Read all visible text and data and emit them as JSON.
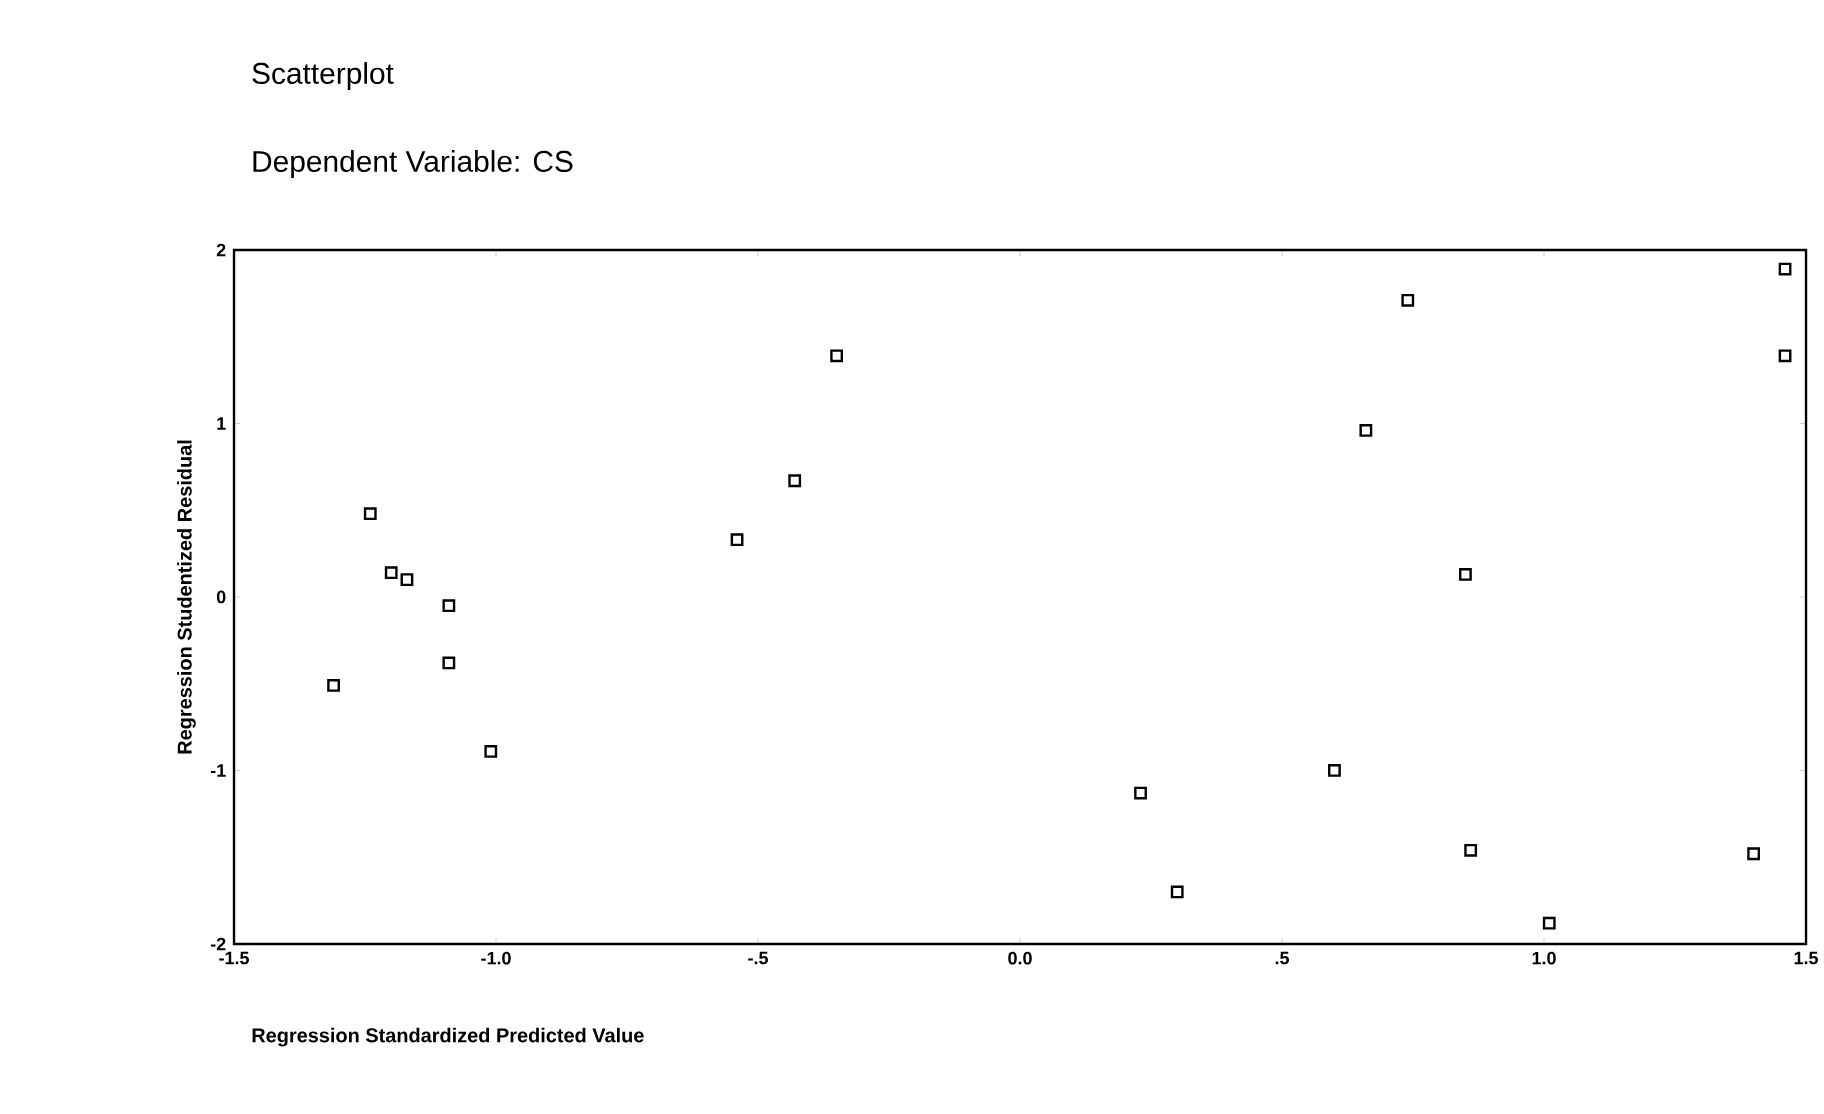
{
  "chart_data": {
    "type": "scatter",
    "title": "Scatterplot",
    "subtitle": "Dependent Variable: CS",
    "xlabel": "Regression Standardized Predicted Value",
    "ylabel": "Regression Studentized Residual",
    "x": [
      -1.31,
      -1.24,
      -1.2,
      -1.17,
      -1.09,
      -1.09,
      -1.01,
      -0.54,
      -0.43,
      -0.35,
      0.23,
      0.3,
      0.6,
      0.66,
      0.74,
      0.85,
      0.86,
      1.01,
      1.4,
      1.46,
      1.46
    ],
    "values": [
      -0.51,
      0.48,
      0.14,
      0.1,
      -0.05,
      -0.38,
      -0.89,
      0.33,
      0.67,
      1.39,
      -1.13,
      -1.7,
      -1.0,
      0.96,
      1.71,
      0.13,
      -1.46,
      -1.88,
      -1.48,
      1.39,
      1.89
    ],
    "color": "#000000",
    "marker": "square",
    "xlim": [
      -1.5,
      1.5
    ],
    "ylim": [
      -2,
      2
    ],
    "xticks": [
      {
        "value": -1.5,
        "label": "-1.5"
      },
      {
        "value": -1.0,
        "label": "-1.0"
      },
      {
        "value": -0.5,
        "label": "-.5"
      },
      {
        "value": 0,
        "label": "0.0"
      },
      {
        "value": 0.5,
        "label": ".5"
      },
      {
        "value": 1.0,
        "label": "1.0"
      },
      {
        "value": 1.5,
        "label": "1.5"
      }
    ],
    "yticks": [
      -2,
      -1,
      0,
      1,
      2
    ],
    "grid": false
  }
}
